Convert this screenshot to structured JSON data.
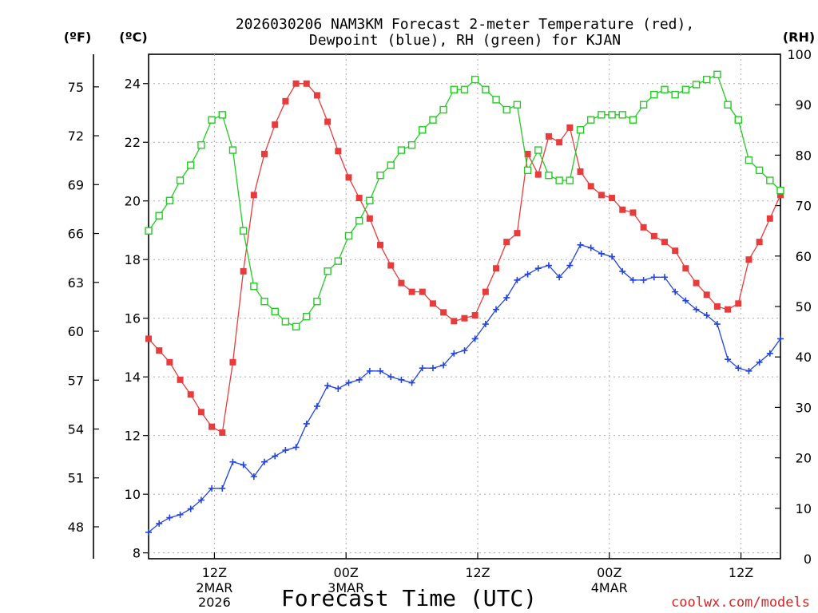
{
  "chart_data": {
    "type": "line",
    "title_line1": "2026030206 NAM3KM Forecast 2-meter Temperature (red),",
    "title_line2": "Dewpoint (blue), RH (green) for KJAN",
    "xlabel": "Forecast Time (UTC)",
    "credit": "coolwx.com/models",
    "axes": {
      "fahrenheit": {
        "unit_label": "(ºF)",
        "ticks": [
          "48",
          "51",
          "54",
          "57",
          "60",
          "63",
          "66",
          "69",
          "72",
          "75"
        ]
      },
      "celsius": {
        "unit_label": "(ºC)",
        "ylim": [
          7.8,
          25
        ],
        "ticks": [
          "8",
          "10",
          "12",
          "14",
          "16",
          "18",
          "20",
          "22",
          "24"
        ]
      },
      "rh": {
        "unit_label": "(RH)",
        "ylim": [
          0,
          100
        ],
        "ticks": [
          "0",
          "10",
          "20",
          "30",
          "40",
          "50",
          "60",
          "70",
          "80",
          "90",
          "100"
        ]
      }
    },
    "x_range_hours": [
      6,
      54
    ],
    "x_ticks": [
      {
        "hour": 11,
        "label": "12Z",
        "sub1": "2MAR",
        "sub2": "2026"
      },
      {
        "hour": 21,
        "label": "00Z",
        "sub1": "3MAR",
        "sub2": ""
      },
      {
        "hour": 31,
        "label": "12Z",
        "sub1": "",
        "sub2": ""
      },
      {
        "hour": 41,
        "label": "00Z",
        "sub1": "4MAR",
        "sub2": ""
      },
      {
        "hour": 51,
        "label": "12Z",
        "sub1": "",
        "sub2": ""
      }
    ],
    "series": [
      {
        "name": "Temperature",
        "unit": "°C",
        "color": "#e83c3c",
        "marker": "filled-square",
        "points": [
          [
            6,
            15.3
          ],
          [
            6.8,
            14.9
          ],
          [
            7.6,
            14.5
          ],
          [
            8.4,
            13.9
          ],
          [
            9.2,
            13.4
          ],
          [
            10,
            12.8
          ],
          [
            10.8,
            12.3
          ],
          [
            11.6,
            12.1
          ],
          [
            12.4,
            14.5
          ],
          [
            13.2,
            17.6
          ],
          [
            14,
            20.2
          ],
          [
            14.8,
            21.6
          ],
          [
            15.6,
            22.6
          ],
          [
            16.4,
            23.4
          ],
          [
            17.2,
            24.0
          ],
          [
            18,
            24.0
          ],
          [
            18.8,
            23.6
          ],
          [
            19.6,
            22.7
          ],
          [
            20.4,
            21.7
          ],
          [
            21.2,
            20.8
          ],
          [
            22,
            20.1
          ],
          [
            22.8,
            19.4
          ],
          [
            23.6,
            18.5
          ],
          [
            24.4,
            17.8
          ],
          [
            25.2,
            17.2
          ],
          [
            26,
            16.9
          ],
          [
            26.8,
            16.9
          ],
          [
            27.6,
            16.5
          ],
          [
            28.4,
            16.2
          ],
          [
            29.2,
            15.9
          ],
          [
            30,
            16.0
          ],
          [
            30.8,
            16.1
          ],
          [
            31.6,
            16.9
          ],
          [
            32.4,
            17.7
          ],
          [
            33.2,
            18.6
          ],
          [
            34,
            18.9
          ],
          [
            34.8,
            21.6
          ],
          [
            35.6,
            20.9
          ],
          [
            36.4,
            22.2
          ],
          [
            37.2,
            22.0
          ],
          [
            38,
            22.5
          ],
          [
            38.8,
            21.0
          ],
          [
            39.6,
            20.5
          ],
          [
            40.4,
            20.2
          ],
          [
            41.2,
            20.1
          ],
          [
            42,
            19.7
          ],
          [
            42.8,
            19.6
          ],
          [
            43.6,
            19.1
          ],
          [
            44.4,
            18.8
          ],
          [
            45.2,
            18.6
          ],
          [
            46,
            18.3
          ],
          [
            46.8,
            17.7
          ],
          [
            47.6,
            17.2
          ],
          [
            48.4,
            16.8
          ],
          [
            49.2,
            16.4
          ],
          [
            50,
            16.3
          ],
          [
            50.8,
            16.5
          ],
          [
            51.6,
            18.0
          ],
          [
            52.4,
            18.6
          ],
          [
            53.2,
            19.4
          ],
          [
            54,
            20.2
          ]
        ]
      },
      {
        "name": "Dewpoint",
        "unit": "°C",
        "color": "#2244dd",
        "marker": "plus",
        "points": [
          [
            6,
            8.7
          ],
          [
            6.8,
            9.0
          ],
          [
            7.6,
            9.2
          ],
          [
            8.4,
            9.3
          ],
          [
            9.2,
            9.5
          ],
          [
            10,
            9.8
          ],
          [
            10.8,
            10.2
          ],
          [
            11.6,
            10.2
          ],
          [
            12.4,
            11.1
          ],
          [
            13.2,
            11.0
          ],
          [
            14,
            10.6
          ],
          [
            14.8,
            11.1
          ],
          [
            15.6,
            11.3
          ],
          [
            16.4,
            11.5
          ],
          [
            17.2,
            11.6
          ],
          [
            18,
            12.4
          ],
          [
            18.8,
            13.0
          ],
          [
            19.6,
            13.7
          ],
          [
            20.4,
            13.6
          ],
          [
            21.2,
            13.8
          ],
          [
            22,
            13.9
          ],
          [
            22.8,
            14.2
          ],
          [
            23.6,
            14.2
          ],
          [
            24.4,
            14.0
          ],
          [
            25.2,
            13.9
          ],
          [
            26,
            13.8
          ],
          [
            26.8,
            14.3
          ],
          [
            27.6,
            14.3
          ],
          [
            28.4,
            14.4
          ],
          [
            29.2,
            14.8
          ],
          [
            30,
            14.9
          ],
          [
            30.8,
            15.3
          ],
          [
            31.6,
            15.8
          ],
          [
            32.4,
            16.3
          ],
          [
            33.2,
            16.7
          ],
          [
            34,
            17.3
          ],
          [
            34.8,
            17.5
          ],
          [
            35.6,
            17.7
          ],
          [
            36.4,
            17.8
          ],
          [
            37.2,
            17.4
          ],
          [
            38,
            17.8
          ],
          [
            38.8,
            18.5
          ],
          [
            39.6,
            18.4
          ],
          [
            40.4,
            18.2
          ],
          [
            41.2,
            18.1
          ],
          [
            42,
            17.6
          ],
          [
            42.8,
            17.3
          ],
          [
            43.6,
            17.3
          ],
          [
            44.4,
            17.4
          ],
          [
            45.2,
            17.4
          ],
          [
            46,
            16.9
          ],
          [
            46.8,
            16.6
          ],
          [
            47.6,
            16.3
          ],
          [
            48.4,
            16.1
          ],
          [
            49.2,
            15.8
          ],
          [
            50,
            14.6
          ],
          [
            50.8,
            14.3
          ],
          [
            51.6,
            14.2
          ],
          [
            52.4,
            14.5
          ],
          [
            53.2,
            14.8
          ],
          [
            54,
            15.3
          ]
        ]
      },
      {
        "name": "RH",
        "unit": "%",
        "color": "#22cc22",
        "marker": "open-square",
        "points": [
          [
            6,
            65
          ],
          [
            6.8,
            68
          ],
          [
            7.6,
            71
          ],
          [
            8.4,
            75
          ],
          [
            9.2,
            78
          ],
          [
            10,
            82
          ],
          [
            10.8,
            87
          ],
          [
            11.6,
            88
          ],
          [
            12.4,
            81
          ],
          [
            13.2,
            65
          ],
          [
            14,
            54
          ],
          [
            14.8,
            51
          ],
          [
            15.6,
            49
          ],
          [
            16.4,
            47
          ],
          [
            17.2,
            46
          ],
          [
            18,
            48
          ],
          [
            18.8,
            51
          ],
          [
            19.6,
            57
          ],
          [
            20.4,
            59
          ],
          [
            21.2,
            64
          ],
          [
            22,
            67
          ],
          [
            22.8,
            71
          ],
          [
            23.6,
            76
          ],
          [
            24.4,
            78
          ],
          [
            25.2,
            81
          ],
          [
            26,
            82
          ],
          [
            26.8,
            85
          ],
          [
            27.6,
            87
          ],
          [
            28.4,
            89
          ],
          [
            29.2,
            93
          ],
          [
            30,
            93
          ],
          [
            30.8,
            95
          ],
          [
            31.6,
            93
          ],
          [
            32.4,
            91
          ],
          [
            33.2,
            89
          ],
          [
            34,
            90
          ],
          [
            34.8,
            77
          ],
          [
            35.6,
            81
          ],
          [
            36.4,
            76
          ],
          [
            37.2,
            75
          ],
          [
            38,
            75
          ],
          [
            38.8,
            85
          ],
          [
            39.6,
            87
          ],
          [
            40.4,
            88
          ],
          [
            41.2,
            88
          ],
          [
            42,
            88
          ],
          [
            42.8,
            87
          ],
          [
            43.6,
            90
          ],
          [
            44.4,
            92
          ],
          [
            45.2,
            93
          ],
          [
            46,
            92
          ],
          [
            46.8,
            93
          ],
          [
            47.6,
            94
          ],
          [
            48.4,
            95
          ],
          [
            49.2,
            96
          ],
          [
            50,
            90
          ],
          [
            50.8,
            87
          ],
          [
            51.6,
            79
          ],
          [
            52.4,
            77
          ],
          [
            53.2,
            75
          ],
          [
            54,
            73
          ]
        ]
      }
    ]
  }
}
